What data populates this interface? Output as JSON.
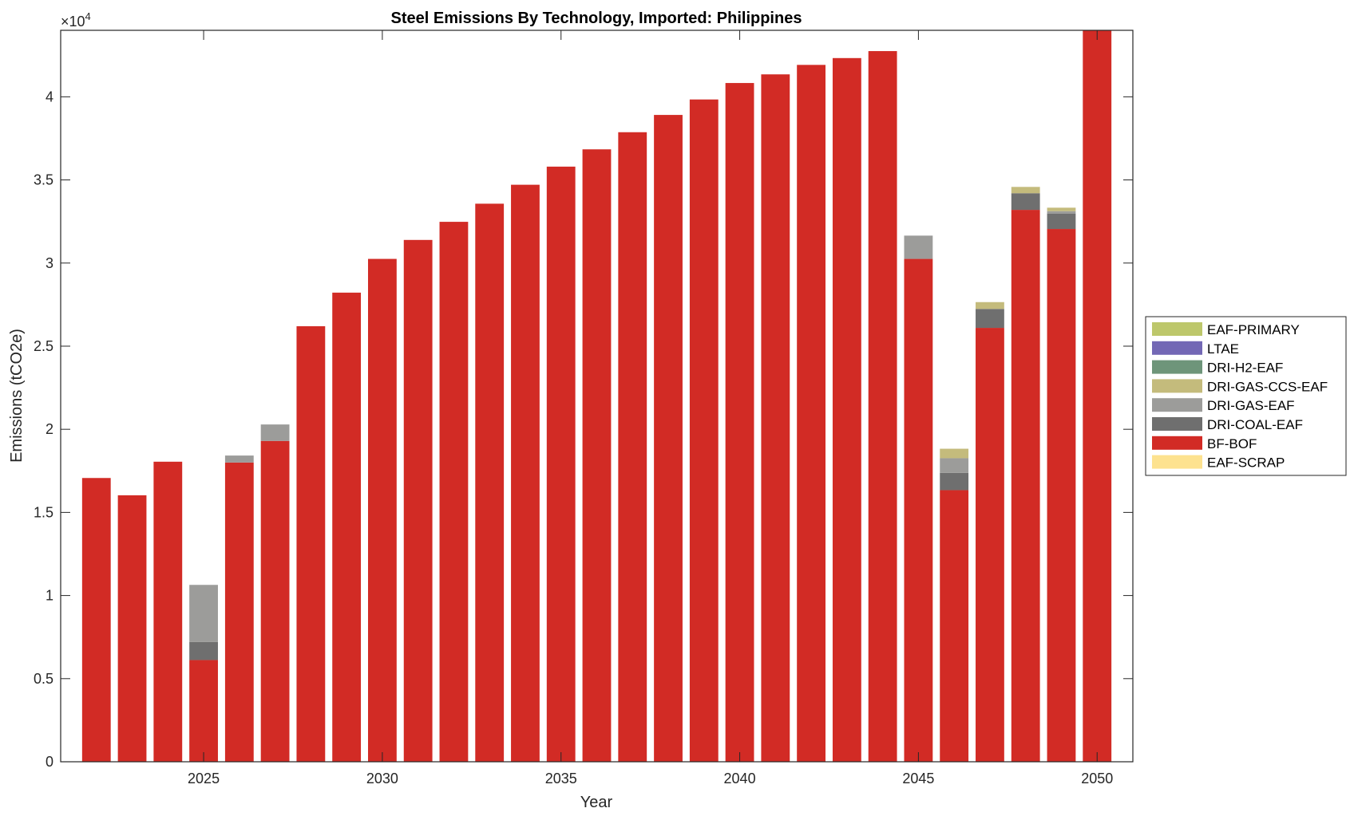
{
  "chart_data": {
    "type": "bar",
    "stacked": true,
    "title": "Steel Emissions By Technology, Imported: Philippines",
    "xlabel": "Year",
    "ylabel": "Emissions (tCO2e)",
    "y_exponent_label": "×10",
    "y_exponent_power": "4",
    "xlim": [
      2021,
      2051
    ],
    "ylim": [
      0,
      44000
    ],
    "x_ticks": [
      2025,
      2030,
      2035,
      2040,
      2045,
      2050
    ],
    "y_ticks": [
      0,
      5000,
      10000,
      15000,
      20000,
      25000,
      30000,
      35000,
      40000
    ],
    "y_tick_labels": [
      "0",
      "0.5",
      "1",
      "1.5",
      "2",
      "2.5",
      "3",
      "3.5",
      "4"
    ],
    "legend_position": "right-outside",
    "categories": [
      2022,
      2023,
      2024,
      2025,
      2026,
      2027,
      2028,
      2029,
      2030,
      2031,
      2032,
      2033,
      2034,
      2035,
      2036,
      2037,
      2038,
      2039,
      2040,
      2041,
      2042,
      2043,
      2044,
      2045,
      2046,
      2047,
      2048,
      2049,
      2050
    ],
    "series": [
      {
        "name": "EAF-SCRAP",
        "color": "#fde28f",
        "values": [
          0,
          0,
          0,
          0,
          0,
          0,
          0,
          0,
          0,
          0,
          0,
          0,
          0,
          0,
          0,
          0,
          0,
          0,
          0,
          0,
          0,
          0,
          0,
          0,
          0,
          0,
          0,
          0,
          0
        ]
      },
      {
        "name": "BF-BOF",
        "color": "#d22b25",
        "values": [
          17070,
          16030,
          18050,
          6120,
          18000,
          19300,
          26200,
          28220,
          30250,
          31390,
          32480,
          33570,
          34710,
          35800,
          36840,
          37870,
          38910,
          39840,
          40830,
          41350,
          41920,
          42330,
          42750,
          30250,
          16340,
          26100,
          33200,
          32050,
          44500
        ]
      },
      {
        "name": "DRI-COAL-EAF",
        "color": "#6f6f6f",
        "values": [
          0,
          0,
          0,
          1090,
          0,
          0,
          0,
          0,
          0,
          0,
          0,
          0,
          0,
          0,
          0,
          0,
          0,
          0,
          0,
          0,
          0,
          0,
          0,
          0,
          1040,
          1140,
          1000,
          930,
          0
        ]
      },
      {
        "name": "DRI-GAS-EAF",
        "color": "#9c9c9a",
        "values": [
          0,
          0,
          0,
          3430,
          420,
          990,
          0,
          0,
          0,
          0,
          0,
          0,
          0,
          0,
          0,
          0,
          0,
          0,
          0,
          0,
          0,
          0,
          0,
          1400,
          880,
          0,
          0,
          140,
          0
        ]
      },
      {
        "name": "DRI-GAS-CCS-EAF",
        "color": "#c4bb7c",
        "values": [
          0,
          0,
          0,
          0,
          0,
          0,
          0,
          0,
          0,
          0,
          0,
          0,
          0,
          0,
          0,
          0,
          0,
          0,
          0,
          0,
          0,
          0,
          0,
          0,
          570,
          410,
          380,
          210,
          0
        ]
      },
      {
        "name": "DRI-H2-EAF",
        "color": "#6e957a",
        "values": [
          0,
          0,
          0,
          0,
          0,
          0,
          0,
          0,
          0,
          0,
          0,
          0,
          0,
          0,
          0,
          0,
          0,
          0,
          0,
          0,
          0,
          0,
          0,
          0,
          0,
          0,
          0,
          0,
          0
        ]
      },
      {
        "name": "LTAE",
        "color": "#7368b5",
        "values": [
          0,
          0,
          0,
          0,
          0,
          0,
          0,
          0,
          0,
          0,
          0,
          0,
          0,
          0,
          0,
          0,
          0,
          0,
          0,
          0,
          0,
          0,
          0,
          0,
          0,
          0,
          0,
          0,
          0
        ]
      },
      {
        "name": "EAF-PRIMARY",
        "color": "#bdc76b",
        "values": [
          0,
          0,
          0,
          0,
          0,
          0,
          0,
          0,
          0,
          0,
          0,
          0,
          0,
          0,
          0,
          0,
          0,
          0,
          0,
          0,
          0,
          0,
          0,
          0,
          0,
          0,
          0,
          0,
          0
        ]
      }
    ],
    "legend_order": [
      "EAF-PRIMARY",
      "LTAE",
      "DRI-H2-EAF",
      "DRI-GAS-CCS-EAF",
      "DRI-GAS-EAF",
      "DRI-COAL-EAF",
      "BF-BOF",
      "EAF-SCRAP"
    ]
  }
}
